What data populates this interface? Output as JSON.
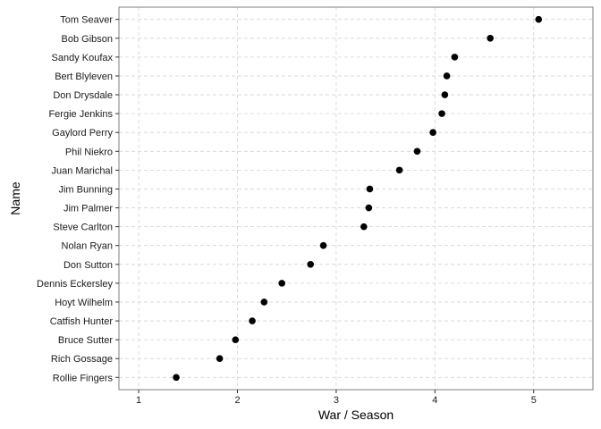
{
  "chart_data": {
    "type": "scatter",
    "title": "",
    "xlabel": "War / Season",
    "ylabel": "Name",
    "xlim": [
      0.8,
      5.6
    ],
    "x_ticks": [
      "1",
      "2",
      "3",
      "4",
      "5"
    ],
    "grid": true,
    "grid_style": "dashed",
    "point_color": "#000000",
    "categories": [
      "Tom Seaver",
      "Bob Gibson",
      "Sandy Koufax",
      "Bert Blyleven",
      "Don Drysdale",
      "Fergie Jenkins",
      "Gaylord Perry",
      "Phil Niekro",
      "Juan Marichal",
      "Jim Bunning",
      "Jim Palmer",
      "Steve Carlton",
      "Nolan Ryan",
      "Don Sutton",
      "Dennis Eckersley",
      "Hoyt Wilhelm",
      "Catfish Hunter",
      "Bruce Sutter",
      "Rich Gossage",
      "Rollie Fingers"
    ],
    "values": [
      5.05,
      4.56,
      4.2,
      4.12,
      4.1,
      4.07,
      3.98,
      3.82,
      3.64,
      3.34,
      3.33,
      3.28,
      2.87,
      2.74,
      2.45,
      2.27,
      2.15,
      1.98,
      1.82,
      1.38
    ]
  }
}
